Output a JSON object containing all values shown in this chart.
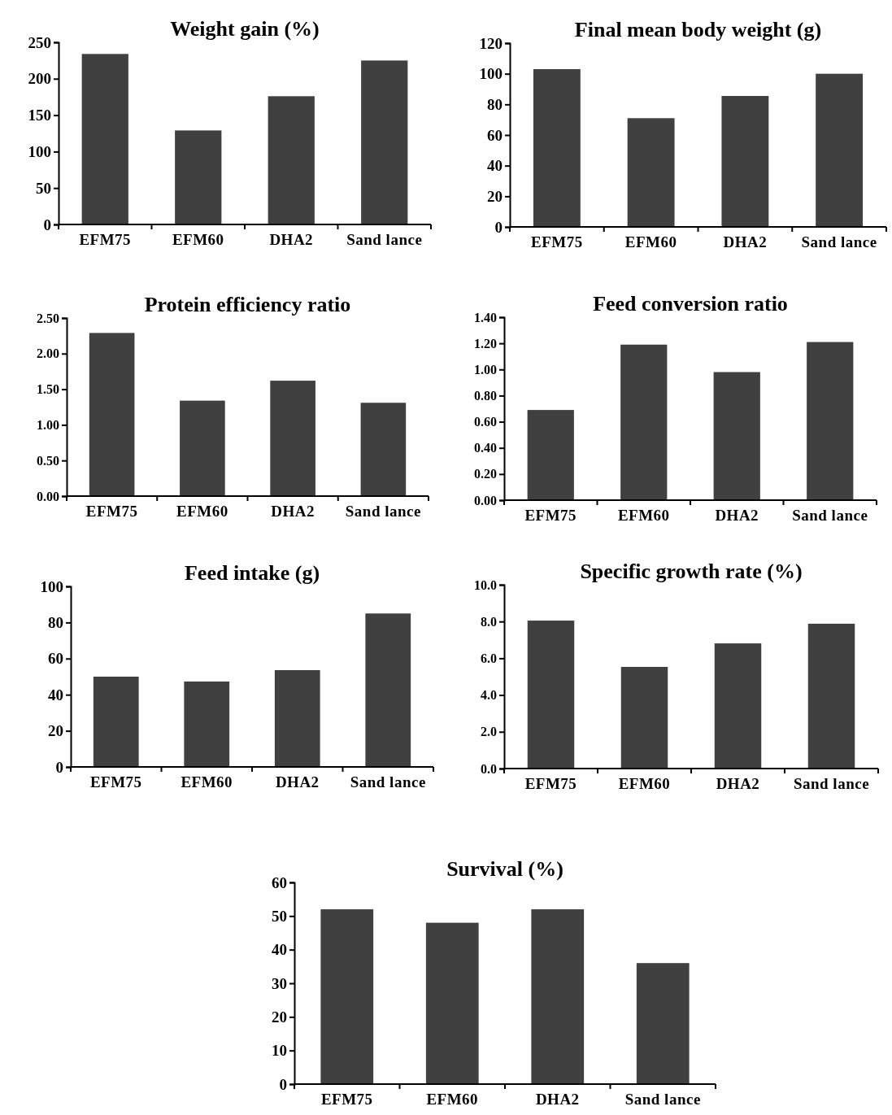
{
  "chart_data": [
    {
      "type": "bar",
      "title": "Weight gain (%)",
      "categories": [
        "EFM75",
        "EFM60",
        "DHA2",
        "Sand lance"
      ],
      "values": [
        234,
        129,
        176,
        225
      ],
      "color": "#404040",
      "ylim": [
        0,
        250
      ],
      "yticks": [
        0,
        50,
        100,
        150,
        200,
        250
      ]
    },
    {
      "type": "bar",
      "title": "Final mean body weight (g)",
      "categories": [
        "EFM75",
        "EFM60",
        "DHA2",
        "Sand lance"
      ],
      "values": [
        103,
        71,
        85.5,
        100
      ],
      "color": "#404040",
      "ylim": [
        0,
        120
      ],
      "yticks": [
        0,
        20,
        40,
        60,
        80,
        100,
        120
      ]
    },
    {
      "type": "bar",
      "title": "Protein efficiency ratio",
      "categories": [
        "EFM75",
        "EFM60",
        "DHA2",
        "Sand lance"
      ],
      "values": [
        2.29,
        1.34,
        1.62,
        1.31
      ],
      "color": "#404040",
      "ylim": [
        0,
        2.5
      ],
      "yticks": [
        {
          "value": 0,
          "label": "0.00"
        },
        {
          "value": 0.5,
          "label": "0.50"
        },
        {
          "value": 1,
          "label": "1.00"
        },
        {
          "value": 1.5,
          "label": "1.50"
        },
        {
          "value": 2,
          "label": "2.00"
        },
        {
          "value": 2.5,
          "label": "2.50"
        }
      ]
    },
    {
      "type": "bar",
      "title": "Feed conversion ratio",
      "categories": [
        "EFM75",
        "EFM60",
        "DHA2",
        "Sand lance"
      ],
      "values": [
        0.69,
        1.19,
        0.98,
        1.21
      ],
      "color": "#404040",
      "ylim": [
        0,
        1.4
      ],
      "yticks": [
        {
          "value": 0,
          "label": "0.00"
        },
        {
          "value": 0.2,
          "label": "0.20"
        },
        {
          "value": 0.4,
          "label": "0.40"
        },
        {
          "value": 0.6,
          "label": "0.60"
        },
        {
          "value": 0.8,
          "label": "0.80"
        },
        {
          "value": 1,
          "label": "1.00"
        },
        {
          "value": 1.2,
          "label": "1.20"
        },
        {
          "value": 1.4,
          "label": "1.40"
        }
      ]
    },
    {
      "type": "bar",
      "title": "Feed intake (g)",
      "categories": [
        "EFM75",
        "EFM60",
        "DHA2",
        "Sand lance"
      ],
      "values": [
        50,
        47.3,
        53.6,
        85
      ],
      "color": "#404040",
      "ylim": [
        0,
        100
      ],
      "yticks": [
        0,
        20,
        40,
        60,
        80,
        100
      ]
    },
    {
      "type": "bar",
      "title": "Specific growth rate (%)",
      "categories": [
        "EFM75",
        "EFM60",
        "DHA2",
        "Sand lance"
      ],
      "values": [
        8.05,
        5.53,
        6.81,
        7.88
      ],
      "color": "#404040",
      "ylim": [
        0,
        10
      ],
      "yticks": [
        {
          "value": 0,
          "label": "0.0"
        },
        {
          "value": 2,
          "label": "2.0"
        },
        {
          "value": 4,
          "label": "4.0"
        },
        {
          "value": 6,
          "label": "6.0"
        },
        {
          "value": 8,
          "label": "8.0"
        },
        {
          "value": 10,
          "label": "10.0"
        }
      ]
    },
    {
      "type": "bar",
      "title": "Survival (%)",
      "categories": [
        "EFM75",
        "EFM60",
        "DHA2",
        "Sand lance"
      ],
      "values": [
        52,
        48,
        52,
        36
      ],
      "color": "#404040",
      "ylim": [
        0,
        60
      ],
      "yticks": [
        0,
        10,
        20,
        30,
        40,
        50,
        60
      ]
    }
  ]
}
